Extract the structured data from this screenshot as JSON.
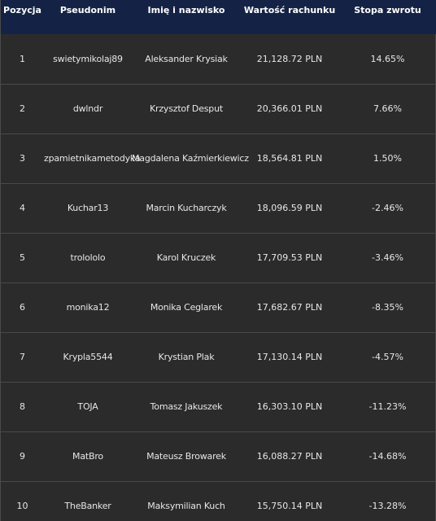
{
  "table": {
    "headers": {
      "position": "Pozycja",
      "nickname": "Pseudonim",
      "full_name": "Imię i nazwisko",
      "account_value": "Wartość rachunku",
      "return_rate": "Stopa zwrotu"
    },
    "rows": [
      {
        "position": "1",
        "nickname": "swietymikolaj89",
        "full_name": "Aleksander Krysiak",
        "account_value": "21,128.72 PLN",
        "return_rate": "14.65%"
      },
      {
        "position": "2",
        "nickname": "dwlndr",
        "full_name": "Krzysztof Desput",
        "account_value": "20,366.01 PLN",
        "return_rate": "7.66%"
      },
      {
        "position": "3",
        "nickname": "zpamietnikametodyka",
        "full_name": "Magdalena Kaźmierkiewicz",
        "account_value": "18,564.81 PLN",
        "return_rate": "1.50%"
      },
      {
        "position": "4",
        "nickname": "Kuchar13",
        "full_name": "Marcin Kucharczyk",
        "account_value": "18,096.59 PLN",
        "return_rate": "-2.46%"
      },
      {
        "position": "5",
        "nickname": "trolololo",
        "full_name": "Karol Kruczek",
        "account_value": "17,709.53 PLN",
        "return_rate": "-3.46%"
      },
      {
        "position": "6",
        "nickname": "monika12",
        "full_name": "Monika Ceglarek",
        "account_value": "17,682.67 PLN",
        "return_rate": "-8.35%"
      },
      {
        "position": "7",
        "nickname": "Krypla5544",
        "full_name": "Krystian Plak",
        "account_value": "17,130.14 PLN",
        "return_rate": "-4.57%"
      },
      {
        "position": "8",
        "nickname": "TOJA",
        "full_name": "Tomasz Jakuszek",
        "account_value": "16,303.10 PLN",
        "return_rate": "-11.23%"
      },
      {
        "position": "9",
        "nickname": "MatBro",
        "full_name": "Mateusz Browarek",
        "account_value": "16,088.27 PLN",
        "return_rate": "-14.68%"
      },
      {
        "position": "10",
        "nickname": "TheBanker",
        "full_name": "Maksymilian Kuch",
        "account_value": "15,750.14 PLN",
        "return_rate": "-13.28%"
      }
    ]
  },
  "colors": {
    "header_background": "#142345",
    "body_background": "#2b2b2b",
    "row_divider": "#4a4a4a",
    "text": "#e6e6e6"
  }
}
